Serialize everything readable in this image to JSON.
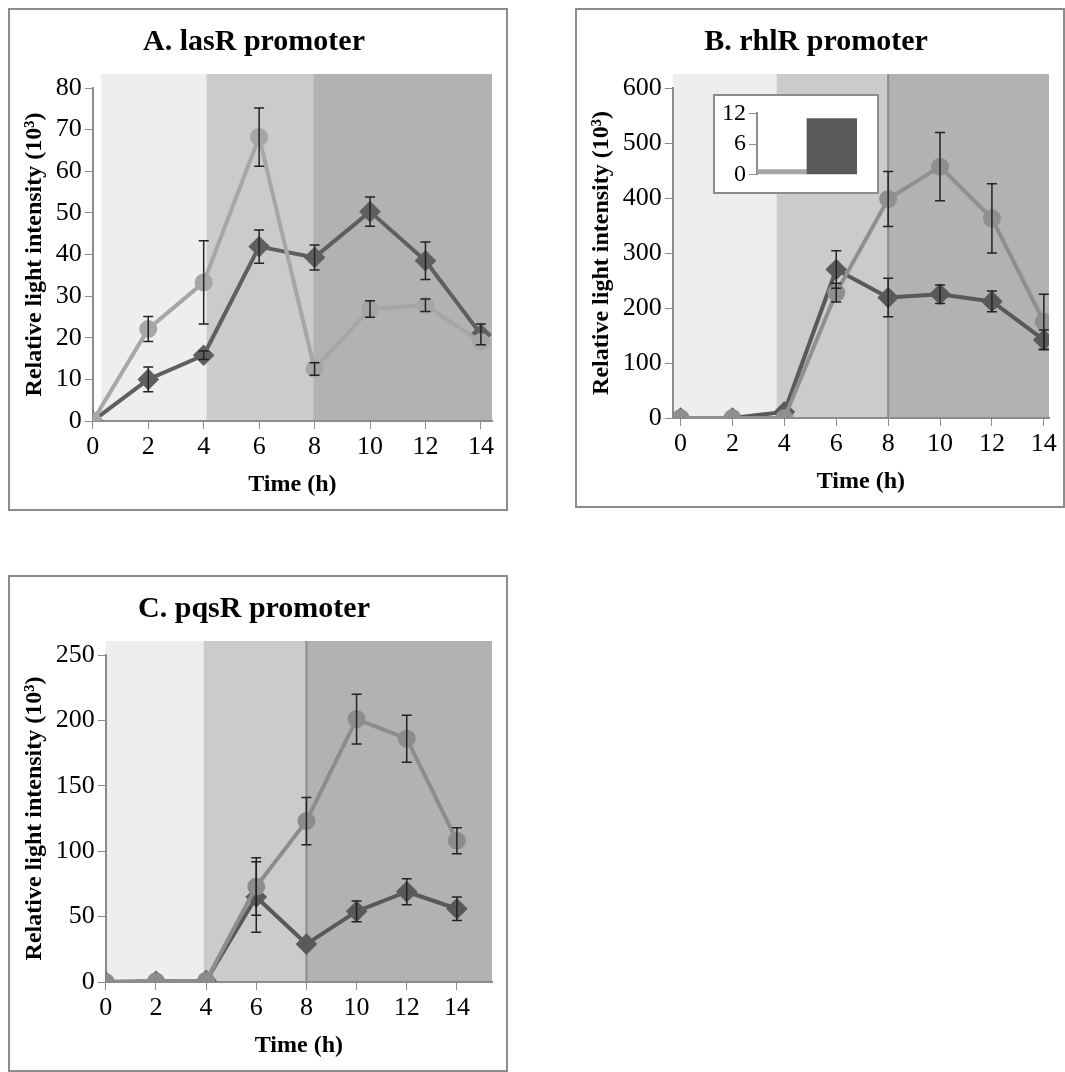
{
  "chart_data": [
    {
      "type": "line",
      "title": "A. lasR promoter",
      "xlabel": "Time (h)",
      "ylabel": "Relative light intensity (10³)",
      "x": [
        0,
        2,
        4,
        6,
        8,
        10,
        12,
        14
      ],
      "xlim": [
        0,
        14.4
      ],
      "xticks": [
        0,
        2,
        4,
        6,
        8,
        10,
        12,
        14
      ],
      "ylim": [
        0,
        80
      ],
      "yticks": [
        0,
        10,
        20,
        30,
        40,
        50,
        60,
        70,
        80
      ],
      "grid": false,
      "line_style": "solid",
      "bands": [
        {
          "axis": "x",
          "from": 0.3,
          "to": 4.1,
          "color": "#eeeeee"
        },
        {
          "axis": "x",
          "from": 4.1,
          "to": 7.95,
          "color": "#cbcbcb"
        },
        {
          "axis": "x",
          "from": 7.95,
          "to": 14.4,
          "color": "#b2b2b2"
        }
      ],
      "series": [
        {
          "color": "#a6a6a6",
          "marker": "circle",
          "values": [
            0,
            22.1,
            33.3,
            68.2,
            12.5,
            26.9,
            27.8,
            19
          ],
          "errors": [
            null,
            3,
            10,
            7,
            1.5,
            2,
            1.5,
            null
          ]
        },
        {
          "color": "#5f5f5f",
          "marker": "diamond",
          "values": [
            0,
            10,
            15.8,
            41.9,
            39.3,
            50.3,
            38.5,
            20.8
          ],
          "errors": [
            null,
            3,
            1,
            4,
            3,
            3.5,
            4.5,
            2.5
          ]
        }
      ]
    },
    {
      "type": "line",
      "title": "B. rhlR promoter",
      "xlabel": "Time (h)",
      "ylabel": "Relative light intensity (10³)",
      "x": [
        0,
        2,
        4,
        6,
        8,
        10,
        12,
        14
      ],
      "xlim": [
        -0.3,
        14.2
      ],
      "xticks": [
        0,
        2,
        4,
        6,
        8,
        10,
        12,
        14
      ],
      "ylim": [
        0,
        600
      ],
      "yticks": [
        0,
        100,
        200,
        300,
        400,
        500,
        600
      ],
      "grid": false,
      "line_style": "solid",
      "bands": [
        {
          "axis": "x",
          "from": -0.3,
          "to": 3.7,
          "color": "#eeeeee"
        },
        {
          "axis": "x",
          "from": 3.7,
          "to": 8,
          "color": "#cbcbcb"
        },
        {
          "axis": "x",
          "from": 8,
          "to": 14.2,
          "color": "#b2b2b2"
        }
      ],
      "ref_lines": [
        {
          "axis": "x",
          "value": 8,
          "color": "#8c8c8c"
        }
      ],
      "series": [
        {
          "color": "#8f8f8f",
          "marker": "circle",
          "values": [
            0,
            0,
            0,
            228,
            398,
            457,
            363,
            175
          ],
          "errors": [
            null,
            null,
            null,
            17,
            50,
            62,
            63,
            50
          ]
        },
        {
          "color": "#595959",
          "marker": "diamond",
          "values": [
            0,
            0,
            11,
            270,
            219,
            225,
            212,
            142
          ],
          "errors": [
            null,
            null,
            null,
            34,
            35,
            17,
            19,
            18
          ]
        }
      ]
    },
    {
      "type": "bar",
      "categories": [
        null,
        null
      ],
      "values": [
        1,
        11
      ],
      "colors": [
        "#a6a6a6",
        "#595959"
      ],
      "ylim": [
        0,
        12
      ],
      "yticks": [
        0,
        6,
        12
      ],
      "grid": false
    },
    {
      "type": "line",
      "title": "C. pqsR promoter",
      "xlabel": "Time (h)",
      "ylabel": "Relative light intensity (10³)",
      "x": [
        0,
        2,
        4,
        6,
        8,
        10,
        12,
        14
      ],
      "xlim": [
        0,
        15.4
      ],
      "xticks": [
        0,
        2,
        4,
        6,
        8,
        10,
        12,
        14
      ],
      "ylim": [
        0,
        250
      ],
      "yticks": [
        0,
        50,
        100,
        150,
        200,
        250
      ],
      "grid": false,
      "line_style": "solid",
      "bands": [
        {
          "axis": "x",
          "from": 0,
          "to": 3.9,
          "color": "#eeeeee"
        },
        {
          "axis": "x",
          "from": 3.9,
          "to": 8,
          "color": "#cbcbcb"
        },
        {
          "axis": "x",
          "from": 8,
          "to": 15.4,
          "color": "#b2b2b2"
        }
      ],
      "ref_lines": [
        {
          "axis": "x",
          "value": 8,
          "color": "#8c8c8c"
        }
      ],
      "series": [
        {
          "color": "#8c8c8c",
          "marker": "circle",
          "values": [
            0,
            0.5,
            1,
            73,
            123,
            201,
            186,
            108
          ],
          "errors": [
            null,
            null,
            null,
            22,
            18,
            19,
            18,
            10
          ]
        },
        {
          "color": "#595959",
          "marker": "diamond",
          "values": [
            0,
            0.5,
            1,
            65,
            29,
            54,
            69,
            56
          ],
          "errors": [
            null,
            null,
            null,
            27,
            null,
            8,
            10,
            9
          ]
        }
      ]
    }
  ]
}
